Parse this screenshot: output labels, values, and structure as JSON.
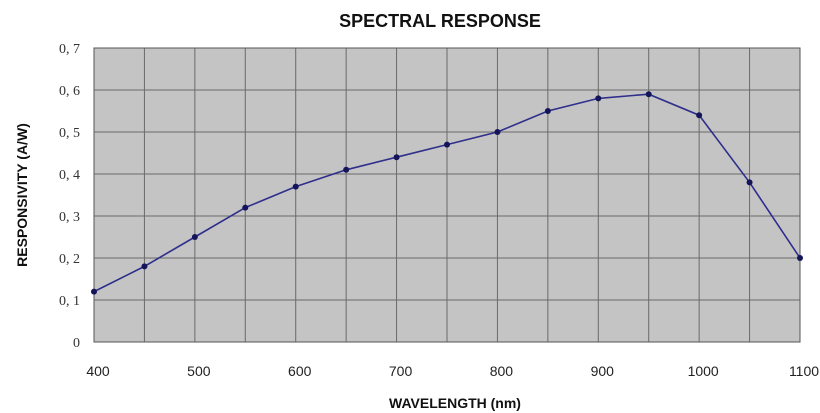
{
  "chart_data": {
    "type": "line",
    "title": "SPECTRAL RESPONSE",
    "xlabel": "WAVELENGTH (nm)",
    "ylabel": "RESPONSIVITY (A/W)",
    "xlim": [
      400,
      1100
    ],
    "ylim": [
      0,
      0.7
    ],
    "xticks": [
      "400",
      "500",
      "600",
      "700",
      "800",
      "900",
      "1000",
      "1100"
    ],
    "yticks": [
      "0",
      "0, 1",
      "0, 2",
      "0, 3",
      "0, 4",
      "0, 5",
      "0, 6",
      "0, 7"
    ],
    "grid": true,
    "legend": "none",
    "series": [
      {
        "x": [
          400,
          450,
          500,
          550,
          600,
          650,
          700,
          750,
          800,
          850,
          900,
          950,
          1000,
          1050,
          1100
        ],
        "y": [
          0.12,
          0.18,
          0.25,
          0.32,
          0.37,
          0.41,
          0.44,
          0.47,
          0.5,
          0.55,
          0.58,
          0.59,
          0.54,
          0.38,
          0.2
        ]
      }
    ],
    "colors": {
      "plot_background": "#c4c4c4",
      "grid": "#6a6a6a",
      "line": "#2e2e8c",
      "marker": "#14145a"
    }
  }
}
